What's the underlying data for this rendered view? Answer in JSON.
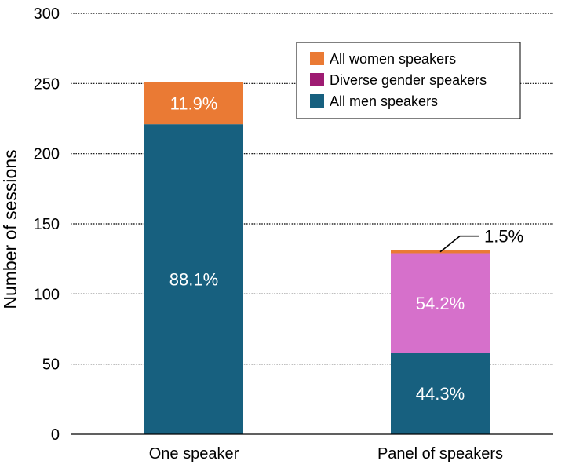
{
  "chart_data": {
    "type": "bar",
    "stacked": true,
    "title": "",
    "xlabel": "",
    "ylabel": "Number of sessions",
    "ylim": [
      0,
      300
    ],
    "yticks": [
      0,
      50,
      100,
      150,
      200,
      250,
      300
    ],
    "grid": true,
    "categories": [
      "One speaker",
      "Panel of speakers"
    ],
    "series": [
      {
        "name": "All men speakers",
        "color": "#17607f",
        "values": [
          221,
          58
        ],
        "labels": [
          "88.1%",
          "44.3%"
        ]
      },
      {
        "name": "Diverse gender speakers",
        "color": "#d670cb",
        "legend_color": "#9e1b72",
        "values": [
          0,
          71
        ],
        "labels": [
          "",
          "54.2%"
        ]
      },
      {
        "name": "All women speakers",
        "color": "#ea7a34",
        "values": [
          30,
          2
        ],
        "labels": [
          "11.9%",
          "1.5%"
        ]
      }
    ],
    "legend": {
      "position": "top-right",
      "order": [
        "All women speakers",
        "Diverse gender speakers",
        "All men speakers"
      ]
    }
  }
}
